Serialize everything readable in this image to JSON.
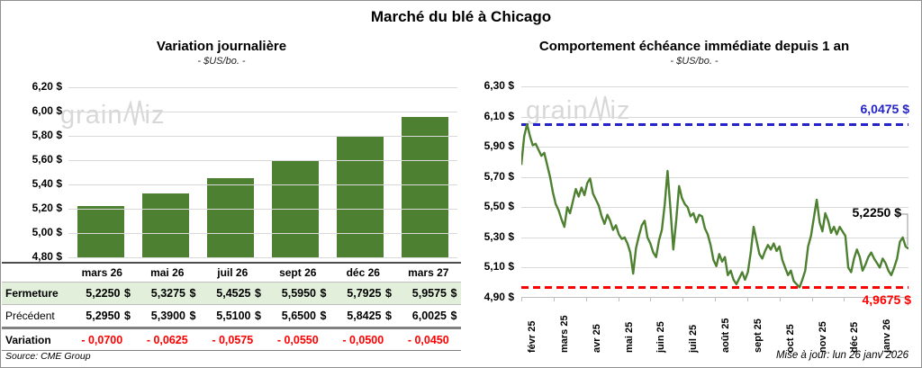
{
  "title": "Marché du blé à Chicago",
  "source_note": "Source: CME Group",
  "update_note": "Mise à jour: lun 26 janv 2026",
  "watermark": {
    "pre": "grain",
    "post": "iz"
  },
  "colors": {
    "green": "#4e8031",
    "table_row_green": "#e2efda",
    "variation_red": "#ff0000",
    "max_blue": "#2323c9",
    "min_red": "#ff0000",
    "grid": "#d9d9d9"
  },
  "left_chart": {
    "title": "Variation journalière",
    "subtitle": "- $US/bo. -",
    "y_tick_labels": [
      "6,20 $",
      "6,00 $",
      "5,80 $",
      "5,60 $",
      "5,40 $",
      "5,20 $",
      "5,00 $",
      "4,80 $"
    ]
  },
  "table": {
    "columns": [
      "mars 26",
      "mai 26",
      "juil 26",
      "sept 26",
      "déc 26",
      "mars 27"
    ],
    "rows": [
      {
        "label": "Fermeture",
        "values": [
          "5,2250 $",
          "5,3275 $",
          "5,4525 $",
          "5,5950 $",
          "5,7925 $",
          "5,9575 $"
        ]
      },
      {
        "label": "Précédent",
        "values": [
          "5,2950 $",
          "5,3900 $",
          "5,5100 $",
          "5,6500 $",
          "5,8425 $",
          "6,0025 $"
        ]
      },
      {
        "label": "Variation",
        "values": [
          "- 0,0700",
          "- 0,0625",
          "- 0,0575",
          "- 0,0550",
          "- 0,0500",
          "- 0,0450"
        ]
      }
    ]
  },
  "right_chart": {
    "title": "Comportement échéance immédiate depuis 1 an",
    "subtitle": "- $US/bo. -",
    "y_tick_labels": [
      "6,30 $",
      "6,10 $",
      "5,90 $",
      "5,70 $",
      "5,50 $",
      "5,30 $",
      "5,10 $",
      "4,90 $"
    ],
    "x_tick_labels": [
      "févr 25",
      "mars 25",
      "avr 25",
      "mai 25",
      "juin 25",
      "juil 25",
      "août 25",
      "sept 25",
      "oct 25",
      "nov 25",
      "déc 25",
      "janv 26"
    ],
    "max_label": "6,0475 $",
    "min_label": "4,9675 $",
    "last_label": "5,2250 $"
  },
  "chart_data": [
    {
      "type": "bar",
      "title": "Variation journalière",
      "subtitle": "- $US/bo. -",
      "categories": [
        "mars 26",
        "mai 26",
        "juil 26",
        "sept 26",
        "déc 26",
        "mars 27"
      ],
      "values": [
        5.225,
        5.3275,
        5.4525,
        5.595,
        5.7925,
        5.9575
      ],
      "xlabel": "",
      "ylabel": "$US/bo.",
      "ylim": [
        4.8,
        6.2
      ],
      "ytick_step": 0.2,
      "grid": true,
      "bar_color": "#4e8031"
    },
    {
      "type": "line",
      "title": "Comportement échéance immédiate depuis 1 an",
      "subtitle": "- $US/bo. -",
      "x_months": [
        "févr 25",
        "mars 25",
        "avr 25",
        "mai 25",
        "juin 25",
        "juil 25",
        "août 25",
        "sept 25",
        "oct 25",
        "nov 25",
        "déc 25",
        "janv 26"
      ],
      "ylim": [
        4.9,
        6.3
      ],
      "ytick_step": 0.2,
      "grid": true,
      "line_color": "#4e8031",
      "max_reference": 6.0475,
      "min_reference": 4.9675,
      "last_value": 5.225,
      "values": [
        5.78,
        5.97,
        6.05,
        5.97,
        5.91,
        5.92,
        5.88,
        5.84,
        5.86,
        5.78,
        5.7,
        5.6,
        5.52,
        5.48,
        5.42,
        5.37,
        5.5,
        5.46,
        5.54,
        5.62,
        5.57,
        5.63,
        5.58,
        5.66,
        5.69,
        5.59,
        5.55,
        5.51,
        5.44,
        5.39,
        5.45,
        5.41,
        5.35,
        5.38,
        5.32,
        5.29,
        5.3,
        5.26,
        5.2,
        5.06,
        5.23,
        5.31,
        5.38,
        5.41,
        5.3,
        5.26,
        5.2,
        5.17,
        5.28,
        5.35,
        5.52,
        5.74,
        5.49,
        5.22,
        5.41,
        5.64,
        5.56,
        5.52,
        5.5,
        5.44,
        5.46,
        5.4,
        5.45,
        5.44,
        5.36,
        5.32,
        5.25,
        5.15,
        5.11,
        5.19,
        5.14,
        5.17,
        5.05,
        5.08,
        5.02,
        4.99,
        5.03,
        5.07,
        5.02,
        5.07,
        5.2,
        5.37,
        5.28,
        5.19,
        5.16,
        5.21,
        5.25,
        5.22,
        5.26,
        5.21,
        5.24,
        5.15,
        5.1,
        5.05,
        5.08,
        5.01,
        4.99,
        4.97,
        5.02,
        5.08,
        5.24,
        5.31,
        5.43,
        5.55,
        5.4,
        5.34,
        5.46,
        5.41,
        5.33,
        5.37,
        5.32,
        5.37,
        5.34,
        5.31,
        5.1,
        5.07,
        5.16,
        5.22,
        5.17,
        5.08,
        5.12,
        5.17,
        5.2,
        5.16,
        5.13,
        5.1,
        5.16,
        5.13,
        5.08,
        5.05,
        5.1,
        5.16,
        5.27,
        5.3,
        5.24,
        5.225
      ]
    }
  ]
}
